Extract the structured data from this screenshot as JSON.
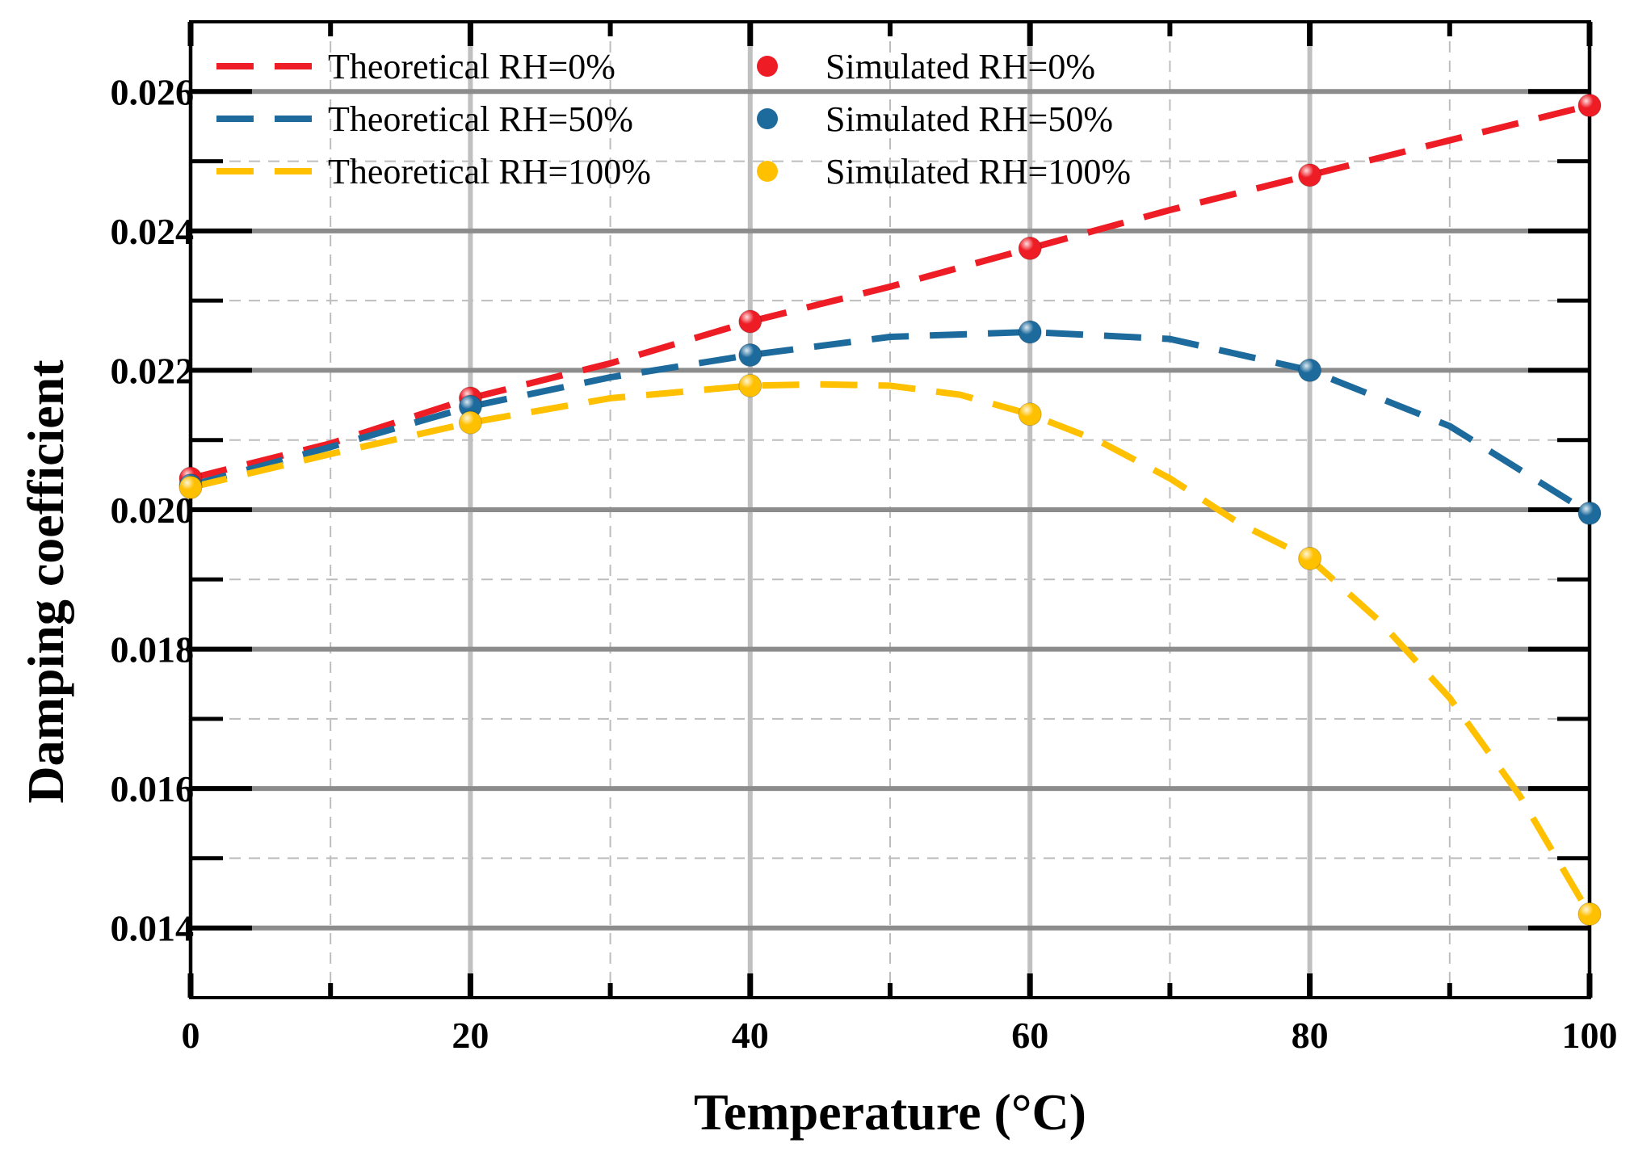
{
  "chart_data": {
    "type": "line",
    "title": "",
    "xlabel": "Temperature (°C)",
    "ylabel": "Damping coefficient",
    "xlim": [
      0,
      100
    ],
    "ylim": [
      0.013,
      0.027
    ],
    "x_ticks": [
      0,
      20,
      40,
      60,
      80,
      100
    ],
    "x_tick_labels": [
      "0",
      "20",
      "40",
      "60",
      "80",
      "100"
    ],
    "x_minor_ticks": [
      10,
      30,
      50,
      70,
      90
    ],
    "y_ticks": [
      0.014,
      0.016,
      0.018,
      0.02,
      0.022,
      0.024,
      0.026
    ],
    "y_tick_labels": [
      "0.014",
      "0.016",
      "0.018",
      "0.020",
      "0.022",
      "0.024",
      "0.026"
    ],
    "y_minor_ticks": [
      0.015,
      0.017,
      0.019,
      0.021,
      0.023,
      0.025
    ],
    "grid": true,
    "legend_position": "top-left",
    "series": [
      {
        "name": "Theoretical RH=0%",
        "style": "dashed-line",
        "color": "#ee1c25",
        "x": [
          0,
          10,
          20,
          30,
          40,
          50,
          60,
          70,
          80,
          90,
          100
        ],
        "y": [
          0.02045,
          0.02095,
          0.0216,
          0.0221,
          0.0227,
          0.0232,
          0.02375,
          0.0243,
          0.0248,
          0.0253,
          0.0258
        ]
      },
      {
        "name": "Theoretical RH=50%",
        "style": "dashed-line",
        "color": "#1d6a9c",
        "x": [
          0,
          10,
          20,
          30,
          40,
          50,
          60,
          70,
          80,
          90,
          100
        ],
        "y": [
          0.02035,
          0.0209,
          0.02148,
          0.0219,
          0.02222,
          0.02248,
          0.02255,
          0.02245,
          0.022,
          0.0212,
          0.01995
        ]
      },
      {
        "name": "Theoretical RH=100%",
        "style": "dashed-line",
        "color": "#ffc000",
        "x": [
          0,
          10,
          20,
          30,
          40,
          45,
          50,
          55,
          60,
          65,
          70,
          75,
          80,
          85,
          90,
          95,
          100
        ],
        "y": [
          0.02032,
          0.0208,
          0.02125,
          0.0216,
          0.02178,
          0.0218,
          0.02178,
          0.02165,
          0.02137,
          0.02098,
          0.02045,
          0.0198,
          0.0193,
          0.0184,
          0.0173,
          0.0159,
          0.0142
        ]
      },
      {
        "name": "Simulated RH=0%",
        "style": "markers",
        "color": "#ee1c25",
        "x": [
          0,
          20,
          40,
          60,
          80,
          100
        ],
        "y": [
          0.02045,
          0.0216,
          0.0227,
          0.02375,
          0.0248,
          0.0258
        ]
      },
      {
        "name": "Simulated RH=50%",
        "style": "markers",
        "color": "#1d6a9c",
        "x": [
          0,
          20,
          40,
          60,
          80,
          100
        ],
        "y": [
          0.02035,
          0.02148,
          0.02222,
          0.02255,
          0.022,
          0.01995
        ]
      },
      {
        "name": "Simulated RH=100%",
        "style": "markers",
        "color": "#ffc000",
        "x": [
          0,
          20,
          40,
          60,
          80,
          100
        ],
        "y": [
          0.02032,
          0.02125,
          0.02178,
          0.02137,
          0.0193,
          0.0142
        ]
      }
    ]
  }
}
